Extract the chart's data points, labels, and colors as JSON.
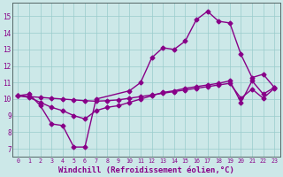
{
  "background_color": "#cce8e8",
  "grid_color": "#99cccc",
  "line_color": "#880088",
  "marker": "D",
  "marker_size": 2.5,
  "line_width": 1.0,
  "xlabel": "Windchill (Refroidissement éolien,°C)",
  "xlabel_fontsize": 6.5,
  "ylim": [
    6.5,
    15.8
  ],
  "xlim": [
    -0.5,
    23.5
  ],
  "yticks": [
    7,
    8,
    9,
    10,
    11,
    12,
    13,
    14,
    15
  ],
  "xtick_labels": [
    "0",
    "1",
    "2",
    "3",
    "4",
    "5",
    "6",
    "7",
    "8",
    "9",
    "10",
    "11",
    "12",
    "13",
    "14",
    "15",
    "16",
    "17",
    "18",
    "19",
    "20",
    "21",
    "22",
    "23"
  ],
  "series1_x": [
    0,
    1,
    2,
    3,
    4,
    5,
    6,
    7,
    10,
    11,
    12,
    13,
    14,
    15,
    16,
    17,
    18,
    19,
    20,
    21,
    22,
    23
  ],
  "series1_y": [
    10.2,
    10.3,
    9.6,
    8.5,
    8.4,
    7.1,
    7.1,
    10.0,
    10.5,
    11.0,
    12.5,
    13.1,
    13.0,
    13.5,
    14.8,
    15.3,
    14.7,
    14.6,
    12.7,
    11.3,
    11.5,
    10.7
  ],
  "series2_x": [
    0,
    1,
    2,
    3,
    4,
    5,
    6,
    7,
    8,
    9,
    10,
    11,
    12,
    13,
    14,
    15,
    16,
    17,
    18,
    19,
    20,
    21,
    22,
    23
  ],
  "series2_y": [
    10.2,
    10.1,
    9.8,
    9.5,
    9.3,
    9.0,
    8.8,
    9.3,
    9.5,
    9.6,
    9.8,
    10.0,
    10.2,
    10.4,
    10.5,
    10.65,
    10.75,
    10.85,
    10.95,
    11.1,
    9.8,
    11.1,
    10.3,
    10.7
  ],
  "series3_x": [
    0,
    1,
    2,
    3,
    4,
    5,
    6,
    7,
    8,
    9,
    10,
    11,
    12,
    13,
    14,
    15,
    16,
    17,
    18,
    19,
    20,
    21,
    22,
    23
  ],
  "series3_y": [
    10.2,
    10.15,
    10.1,
    10.05,
    10.0,
    9.95,
    9.9,
    9.87,
    9.9,
    9.95,
    10.05,
    10.15,
    10.25,
    10.35,
    10.45,
    10.55,
    10.65,
    10.75,
    10.85,
    10.95,
    10.05,
    10.6,
    10.05,
    10.65
  ]
}
